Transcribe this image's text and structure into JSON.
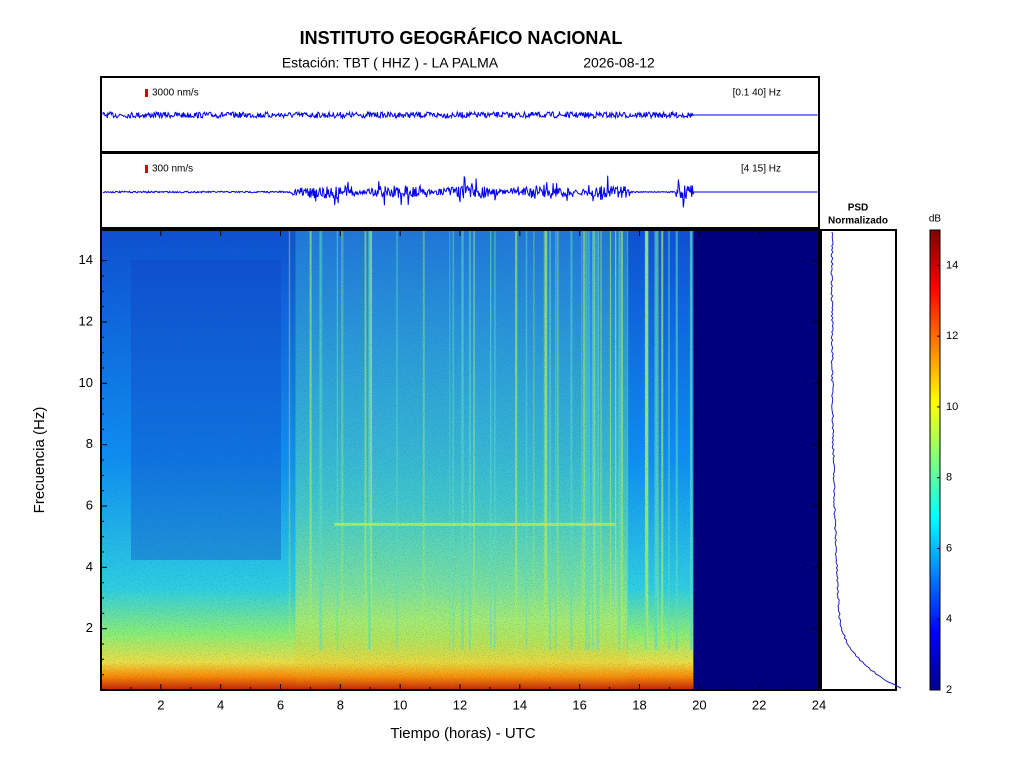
{
  "chart_data": {
    "type": "spectrogram",
    "title": "INSTITUTO GEOGRÁFICO NACIONAL",
    "subtitle": "Estación:  TBT ( HHZ ) - LA PALMA",
    "date": "2026-08-12",
    "xlabel": "Tiempo (horas) - UTC",
    "ylabel": "Frecuencia  (Hz)",
    "xlim": [
      0,
      24
    ],
    "xticks": [
      2,
      4,
      6,
      8,
      10,
      12,
      14,
      16,
      18,
      20,
      22,
      24
    ],
    "ylim": [
      0,
      15
    ],
    "yticks": [
      2,
      4,
      6,
      8,
      10,
      12,
      14
    ],
    "waveforms": [
      {
        "scale": "3000 nm/s",
        "band": "[0.1 40] Hz"
      },
      {
        "scale": "300 nm/s",
        "band": "[4 15] Hz"
      }
    ],
    "psd_title": [
      "PSD",
      "Normalizado"
    ],
    "colorbar": {
      "label": "dB",
      "lim": [
        2,
        15
      ],
      "ticks": [
        2,
        4,
        6,
        8,
        10,
        12,
        14
      ]
    }
  }
}
